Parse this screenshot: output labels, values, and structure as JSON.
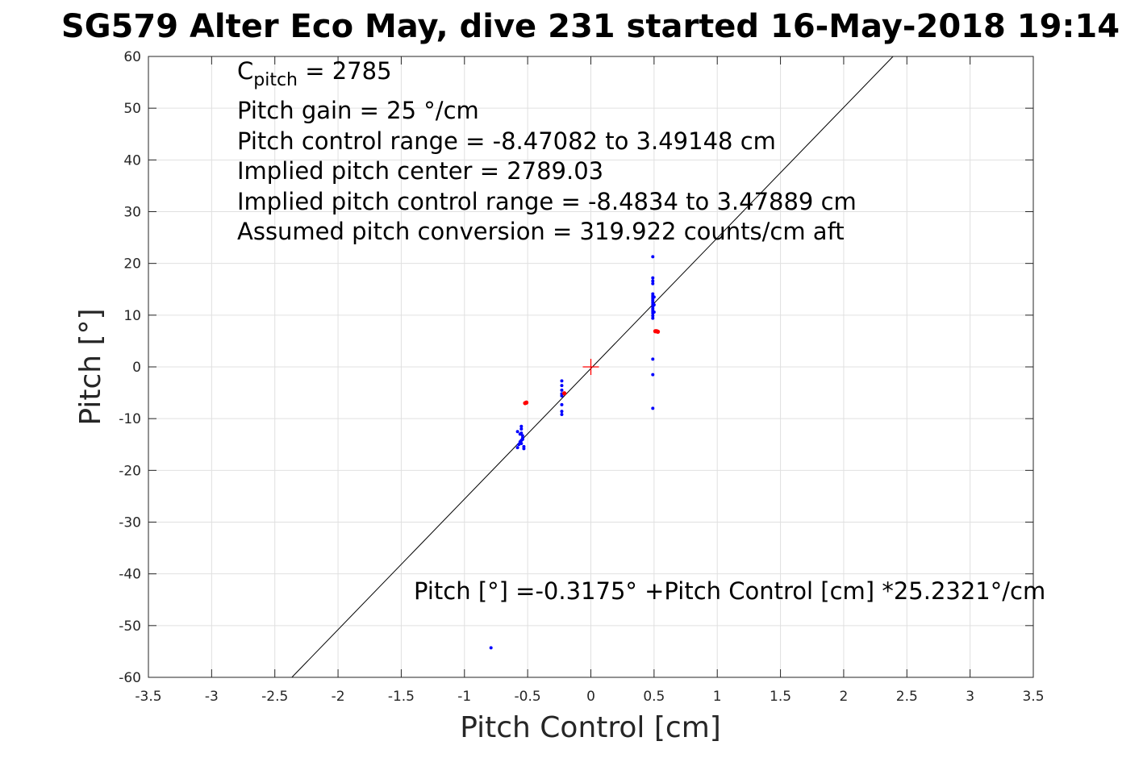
{
  "chart_data": {
    "type": "scatter",
    "title": "SG579 Alter Eco May, dive 231 started 16-May-2018 19:14",
    "xlabel": "Pitch Control [cm]",
    "ylabel": "Pitch [°]",
    "xlim": [
      -3.5,
      3.5
    ],
    "ylim": [
      -60,
      60
    ],
    "xticks": [
      -3.5,
      -3,
      -2.5,
      -2,
      -1.5,
      -1,
      -0.5,
      0,
      0.5,
      1,
      1.5,
      2,
      2.5,
      3,
      3.5
    ],
    "yticks": [
      -60,
      -50,
      -40,
      -30,
      -20,
      -10,
      0,
      10,
      20,
      30,
      40,
      50,
      60
    ],
    "xtick_labels": [
      "-3.5",
      "-3",
      "-2.5",
      "-2",
      "-1.5",
      "-1",
      "-0.5",
      "0",
      "0.5",
      "1",
      "1.5",
      "2",
      "2.5",
      "3",
      "3.5"
    ],
    "ytick_labels": [
      "-60",
      "-50",
      "-40",
      "-30",
      "-20",
      "-10",
      "0",
      "10",
      "20",
      "30",
      "40",
      "50",
      "60"
    ],
    "grid": true,
    "fit_line": {
      "intercept": -0.3175,
      "slope": 25.2321,
      "color": "#000000"
    },
    "center_marker": {
      "x": 0,
      "y": 0,
      "color": "#ff0000"
    },
    "series": [
      {
        "color": "#0000ff",
        "points": [
          [
            0.49,
            21.3
          ],
          [
            0.49,
            17.2
          ],
          [
            0.49,
            16.6
          ],
          [
            0.49,
            16.1
          ],
          [
            0.49,
            14.1
          ],
          [
            0.49,
            13.7
          ],
          [
            0.49,
            13.3
          ],
          [
            0.49,
            12.9
          ],
          [
            0.49,
            12.5
          ],
          [
            0.49,
            12.1
          ],
          [
            0.49,
            11.6
          ],
          [
            0.49,
            11.2
          ],
          [
            0.49,
            10.8
          ],
          [
            0.49,
            10.4
          ],
          [
            0.49,
            9.9
          ],
          [
            0.49,
            9.4
          ],
          [
            0.5,
            13.5
          ],
          [
            0.5,
            12.0
          ],
          [
            0.5,
            10.6
          ],
          [
            0.49,
            1.5
          ],
          [
            0.49,
            -1.5
          ],
          [
            0.49,
            -8.0
          ],
          [
            -0.23,
            -2.7
          ],
          [
            -0.23,
            -3.6
          ],
          [
            -0.23,
            -4.5
          ],
          [
            -0.23,
            -5.2
          ],
          [
            -0.23,
            -5.6
          ],
          [
            -0.23,
            -7.3
          ],
          [
            -0.23,
            -8.6
          ],
          [
            -0.23,
            -9.2
          ],
          [
            -0.58,
            -12.5
          ],
          [
            -0.58,
            -15.6
          ],
          [
            -0.57,
            -15.0
          ],
          [
            -0.56,
            -14.5
          ],
          [
            -0.55,
            -11.5
          ],
          [
            -0.55,
            -12.0
          ],
          [
            -0.55,
            -12.8
          ],
          [
            -0.54,
            -13.3
          ],
          [
            -0.54,
            -13.8
          ],
          [
            -0.55,
            -14.2
          ],
          [
            -0.55,
            -14.8
          ],
          [
            -0.53,
            -15.4
          ],
          [
            -0.53,
            -15.8
          ],
          [
            -0.56,
            -13.0
          ],
          [
            -0.54,
            -14.0
          ],
          [
            -0.79,
            -54.3
          ]
        ]
      },
      {
        "color": "#ff0000",
        "points": [
          [
            0.51,
            6.9
          ],
          [
            0.52,
            6.9
          ],
          [
            0.53,
            6.8
          ],
          [
            -0.52,
            -7.0
          ],
          [
            -0.51,
            -6.9
          ],
          [
            -0.21,
            -5.1
          ]
        ]
      }
    ],
    "annotations": [
      {
        "parts": [
          "C",
          "pitch",
          " = 2785"
        ]
      },
      {
        "text": "Pitch gain = 25 °/cm"
      },
      {
        "text": "Pitch control range = -8.47082 to 3.49148 cm"
      },
      {
        "text": "Implied pitch center = 2789.03"
      },
      {
        "text": "Implied pitch control range = -8.4834 to 3.47889 cm"
      },
      {
        "text": "Assumed pitch conversion = 319.922 counts/cm aft"
      }
    ],
    "fit_label": "Pitch [°] =-0.3175° +Pitch Control [cm] *25.2321°/cm"
  }
}
